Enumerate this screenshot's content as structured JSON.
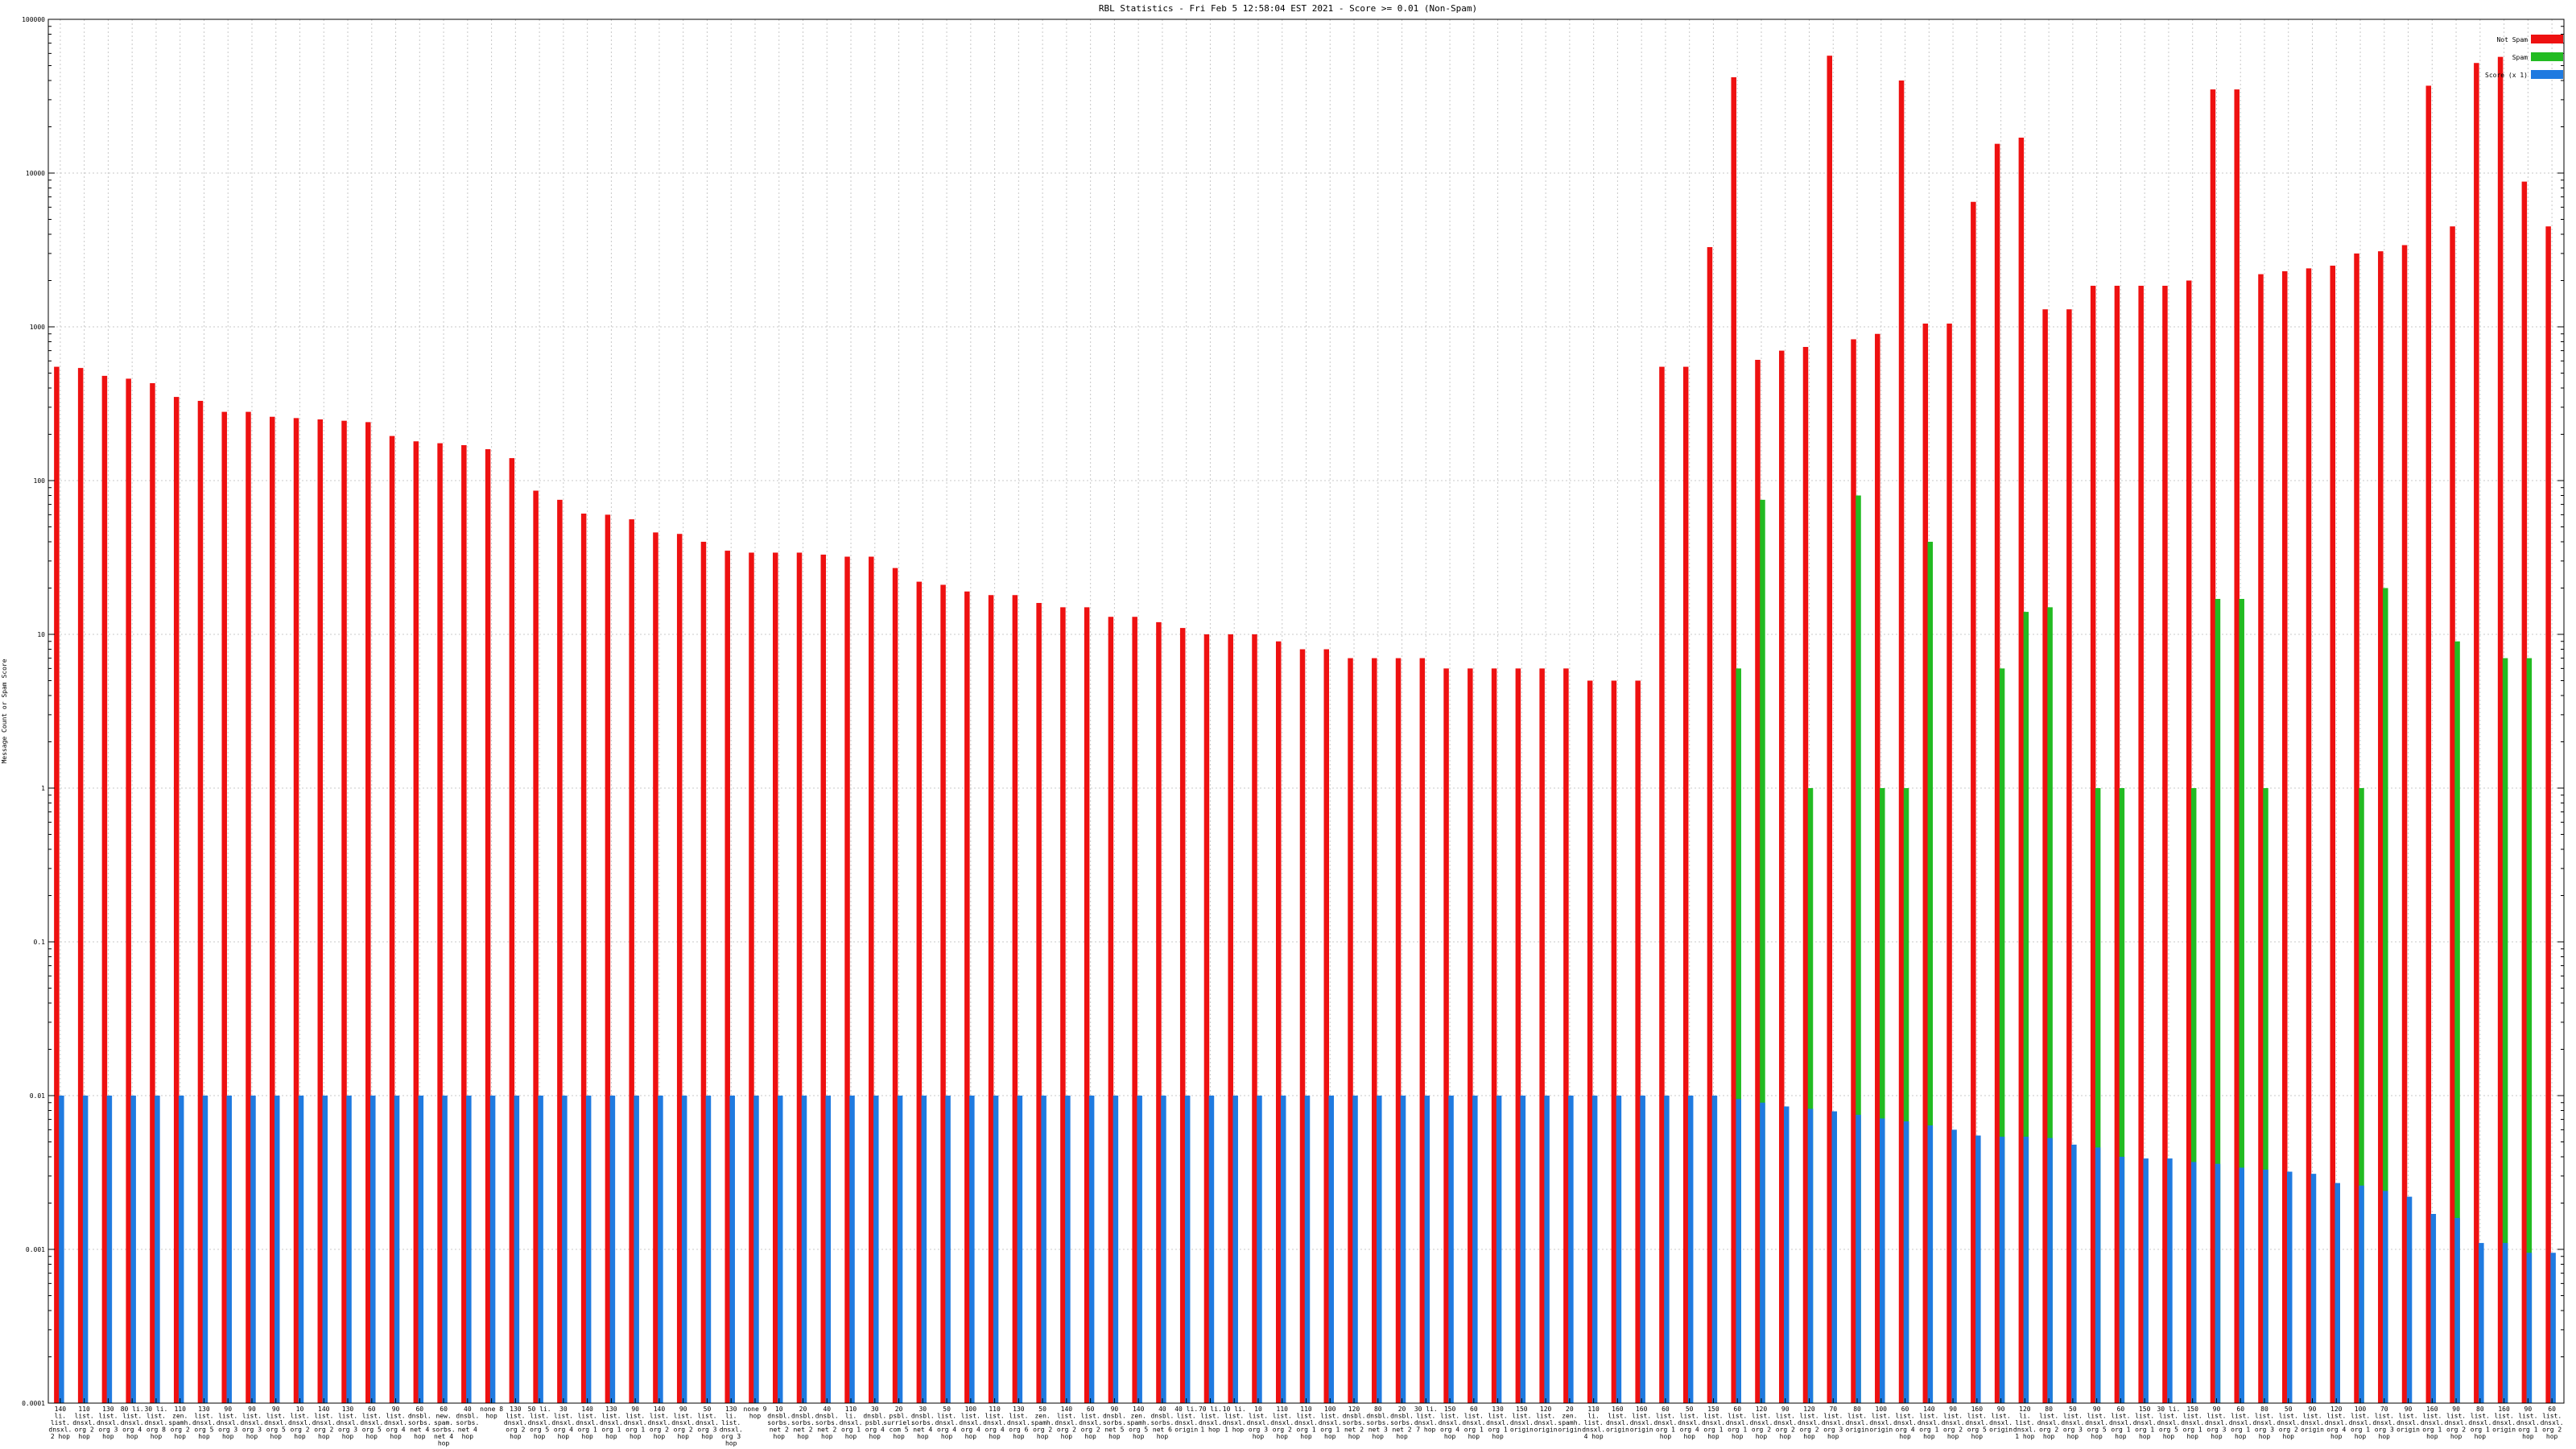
{
  "chart_data": {
    "type": "bar",
    "title": "RBL Statistics - Fri Feb  5 12:58:04 EST 2021 - Score >= 0.01 (Non-Spam)",
    "ylabel": "Message Count or Spam Score",
    "xlabel": "",
    "yscale": "log",
    "ylim": [
      0.0001,
      100000
    ],
    "yticks": [
      {
        "value": 0.0001,
        "label": "0.0001"
      },
      {
        "value": 0.001,
        "label": "0.001"
      },
      {
        "value": 0.01,
        "label": "0.01"
      },
      {
        "value": 0.1,
        "label": "0.1"
      },
      {
        "value": 1,
        "label": "1"
      },
      {
        "value": 10,
        "label": "10"
      },
      {
        "value": 100,
        "label": "100"
      },
      {
        "value": 1000,
        "label": "1000"
      },
      {
        "value": 10000,
        "label": "10000"
      },
      {
        "value": 100000,
        "label": "100000"
      }
    ],
    "grid": true,
    "legend_position": "top-right",
    "colors": {
      "non_spam": "#ee1111",
      "spam": "#22bb22",
      "score": "#1f7ae0"
    },
    "categories": [
      "140 li. list. dnsxl. 2 hop",
      "110 list. dnsxl. org 2 hop",
      "130 list. dnsxl. org 3 hop",
      "80 li. list. dnsxl. org 4 hop",
      "30 li. list. dnsxl. org 8 hop",
      "110 zen. spamh. org 2 hop",
      "130 list. dnsxl. org 5 hop",
      "90 list. dnsxl. org 3 hop",
      "90 list. dnsxl. org 3 hop",
      "90 list. dnsxl. org 5 hop",
      "10 list. dnsxl. org 2 hop",
      "140 list. dnsxl. org 2 hop",
      "130 list. dnsxl. org 3 hop",
      "60 list. dnsxl. org 5 hop",
      "90 list. dnsxl. org 4 hop",
      "60 dnsbl. sorbs. net 4 hop",
      "60 new. spam. sorbs. net 4 hop",
      "40 dnsbl. sorbs. net 4 hop",
      "none 8 hop",
      "130 list. dnsxl. org 2 hop",
      "50 li. list. dnsxl. org 5 hop",
      "30 list. dnsxl. org 4 hop",
      "140 list. dnsxl. org 1 hop",
      "130 list. dnsxl. org 1 hop",
      "90 list. dnsxl. org 1 hop",
      "140 list. dnsxl. org 2 hop",
      "90 list. dnsxl. org 2 hop",
      "50 list. dnsxl. org 3 hop",
      "130 li. list. dnsxl. org 3 hop",
      "none 9 hop",
      "10 dnsbl. sorbs. net 2 hop",
      "20 dnsbl. sorbs. net 2 hop",
      "40 dnsbl. sorbs. net 2 hop",
      "110 li. dnsxl. org 1 hop",
      "30 dnsbl. psbl. org 4 hop",
      "20 psbl. surriel. com 5 hop",
      "30 dnsbl. sorbs. net 4 hop",
      "50 list. dnsxl. org 4 hop",
      "100 list. dnsxl. org 4 hop",
      "110 list. dnsxl. org 4 hop",
      "130 list. dnsxl. org 6 hop",
      "50 zen. spamh. org 2 hop",
      "140 list. dnsxl. org 2 hop",
      "60 list. dnsxl. org 2 hop",
      "90 dnsbl. sorbs. net 5 hop",
      "140 zen. spamh. org 5 hop",
      "40 dnsbl. sorbs. net 6 hop",
      "40 li. list. dnsxl. origin",
      "70 li. list. dnsxl. 1 hop",
      "10 li. list. dnsxl. 1 hop",
      "10 list. dnsxl. org 3 hop",
      "110 list. dnsxl. org 2 hop",
      "110 list. dnsxl. org 1 hop",
      "100 list. dnsxl. org 1 hop",
      "120 dnsbl. sorbs. net 2 hop",
      "80 dnsbl. sorbs. net 3 hop",
      "20 dnsbl. sorbs. net 2 hop",
      "30 li. list. dnsxl. 7 hop",
      "150 list. dnsxl. org 4 hop",
      "60 list. dnsxl. org 1 hop",
      "130 list. dnsxl. org 1 hop",
      "150 list. dnsxl. origin",
      "120 list. dnsxl. origin",
      "20 zen. spamh. origin",
      "110 li. list. dnsxl. 4 hop",
      "160 list. dnsxl. origin",
      "160 list. dnsxl. origin",
      "60 list. dnsxl. org 1 hop",
      "50 list. dnsxl. org 4 hop",
      "150 list. dnsxl. org 1 hop",
      "60 list. dnsxl. org 1 hop",
      "120 list. dnsxl. org 2 hop",
      "90 list. dnsxl. org 2 hop",
      "120 list. dnsxl. org 2 hop",
      "70 list. dnsxl. org 3 hop",
      "80 list. dnsxl. origin",
      "100 list. dnsxl. origin",
      "60 list. dnsxl. org 4 hop",
      "140 list. dnsxl. org 1 hop",
      "90 list. dnsxl. org 2 hop",
      "160 list. dnsxl. org 5 hop",
      "90 list. dnsxl. origin",
      "120 li. list. dnsxl. 1 hop",
      "80 list. dnsxl. org 2 hop",
      "50 list. dnsxl. org 3 hop",
      "90 list. dnsxl. org 5 hop",
      "60 list. dnsxl. org 1 hop",
      "150 list. dnsxl. org 1 hop",
      "30 li. list. dnsxl. org 5 hop",
      "150 list. dnsxl. org 1 hop",
      "90 list. dnsxl. org 3 hop",
      "60 list. dnsxl. org 1 hop",
      "80 list. dnsxl. org 3 hop",
      "50 list. dnsxl. org 2 hop",
      "90 list. dnsxl. origin",
      "120 list. dnsxl. org 4 hop",
      "100 list. dnsxl. org 1 hop",
      "70 list. dnsxl. org 3 hop",
      "90 list. dnsxl. origin",
      "160 list. dnsxl. org 1 hop",
      "90 list. dnsxl. org 2 hop",
      "80 list. dnsxl. org 1 hop",
      "160 list. dnsxl. origin",
      "90 list. dnsxl. org 1 hop",
      "60 list. dnsxl. org 2 hop"
    ],
    "series": [
      {
        "name": "Not Spam",
        "color": "#ee1111",
        "values": [
          550,
          540,
          480,
          460,
          430,
          350,
          330,
          280,
          280,
          260,
          255,
          250,
          245,
          240,
          195,
          180,
          175,
          170,
          160,
          140,
          86,
          75,
          61,
          60,
          56,
          46,
          45,
          40,
          35,
          34,
          34,
          34,
          33,
          32,
          32,
          27,
          22,
          21,
          19,
          18,
          18,
          16,
          15,
          15,
          13,
          13,
          12,
          11,
          10,
          10,
          10,
          9,
          8,
          8,
          7,
          7,
          7,
          7,
          6,
          6,
          6,
          6,
          6,
          6,
          5,
          5,
          5,
          550,
          550,
          3300,
          42000,
          610,
          700,
          740,
          58000,
          830,
          900,
          40000,
          1050,
          1050,
          6500,
          15500,
          17000,
          1300,
          1300,
          1850,
          1850,
          1850,
          1850,
          2000,
          35000,
          35000,
          2200,
          2300,
          2400,
          2500,
          3000,
          3100,
          3400,
          37000,
          4500,
          52000,
          57000,
          8800,
          4500
        ]
      },
      {
        "name": "Spam",
        "color": "#22bb22",
        "values": [
          0,
          0,
          0,
          0,
          0,
          0,
          0,
          0,
          0,
          0,
          0,
          0,
          0,
          0,
          0,
          0,
          0,
          0,
          0,
          0,
          0,
          0,
          0,
          0,
          0,
          0,
          0,
          0,
          0,
          0,
          0,
          0,
          0,
          0,
          0,
          0,
          0,
          0,
          0,
          0,
          0,
          0,
          0,
          0,
          0,
          0,
          0,
          0,
          0,
          0,
          0,
          0,
          0,
          0,
          0,
          0,
          0,
          0,
          0,
          0,
          0,
          0,
          0,
          0,
          0,
          0,
          0,
          0,
          0,
          0,
          6,
          75,
          0,
          1,
          0,
          80,
          1,
          1,
          40,
          0,
          0,
          6,
          14,
          15,
          0,
          1,
          1,
          0,
          0,
          1,
          17,
          17,
          1,
          0,
          0,
          0,
          1,
          20,
          0,
          0,
          9,
          0,
          7,
          7,
          0
        ]
      },
      {
        "name": "Score (x 1)",
        "color": "#1f7ae0",
        "values": [
          0.01,
          0.01,
          0.01,
          0.01,
          0.01,
          0.01,
          0.01,
          0.01,
          0.01,
          0.01,
          0.01,
          0.01,
          0.01,
          0.01,
          0.01,
          0.01,
          0.01,
          0.01,
          0.01,
          0.01,
          0.01,
          0.01,
          0.01,
          0.01,
          0.01,
          0.01,
          0.01,
          0.01,
          0.01,
          0.01,
          0.01,
          0.01,
          0.01,
          0.01,
          0.01,
          0.01,
          0.01,
          0.01,
          0.01,
          0.01,
          0.01,
          0.01,
          0.01,
          0.01,
          0.01,
          0.01,
          0.01,
          0.01,
          0.01,
          0.01,
          0.01,
          0.01,
          0.01,
          0.01,
          0.01,
          0.01,
          0.01,
          0.01,
          0.01,
          0.01,
          0.01,
          0.01,
          0.01,
          0.01,
          0.01,
          0.01,
          0.01,
          0.01,
          0.01,
          0.01,
          0.0095,
          0.009,
          0.0085,
          0.0082,
          0.0079,
          0.0075,
          0.0071,
          0.0068,
          0.0064,
          0.006,
          0.0055,
          0.0054,
          0.0054,
          0.0053,
          0.0048,
          0.0046,
          0.004,
          0.0039,
          0.0039,
          0.0037,
          0.0036,
          0.0034,
          0.0033,
          0.0032,
          0.0031,
          0.0027,
          0.0026,
          0.0024,
          0.0022,
          0.0017,
          0.0016,
          0.0011,
          0.0011,
          0.00095,
          0.00095
        ]
      }
    ]
  }
}
